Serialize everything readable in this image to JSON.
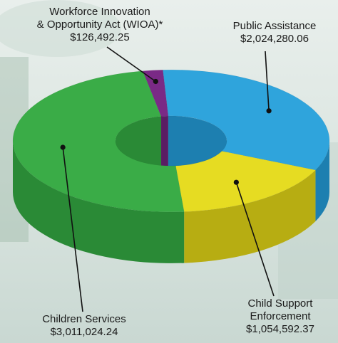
{
  "chart_data": {
    "type": "pie",
    "variant": "3d-donut",
    "title": "",
    "slices": [
      {
        "name_lines": [
          "Public Assistance"
        ],
        "value_label": "$2,024,280.06",
        "value": 2024280.06,
        "color": "#2fa4dc",
        "side_color": "#1d7fb0"
      },
      {
        "name_lines": [
          "Child Support",
          "Enforcement"
        ],
        "value_label": "$1,054,592.37",
        "value": 1054592.37,
        "color": "#e6dc22",
        "side_color": "#b7ad12"
      },
      {
        "name_lines": [
          "Children Services"
        ],
        "value_label": "$3,011,024.24",
        "value": 3011024.24,
        "color": "#3aac47",
        "side_color": "#2a8a36"
      },
      {
        "name_lines": [
          "Workforce Innovation",
          "& Opportunity Act (WIOA)*"
        ],
        "value_label": "$126,492.25",
        "value": 126492.25,
        "color": "#7a2a86",
        "side_color": "#5a1d63"
      }
    ]
  }
}
